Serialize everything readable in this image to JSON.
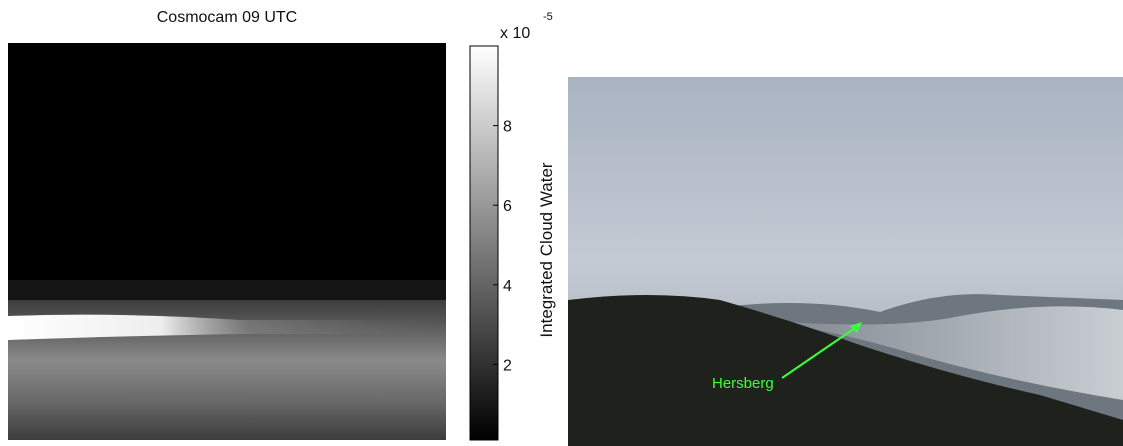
{
  "left_panel": {
    "title": "Cosmocam 09 UTC",
    "colorbar": {
      "label": "Integrated Cloud Water",
      "multiplier": "x 10",
      "exponent": "-5",
      "lim": [
        0,
        10
      ],
      "ticks": [
        2,
        4,
        6,
        8
      ]
    }
  },
  "right_panel": {
    "annotation": "Hersberg"
  }
}
